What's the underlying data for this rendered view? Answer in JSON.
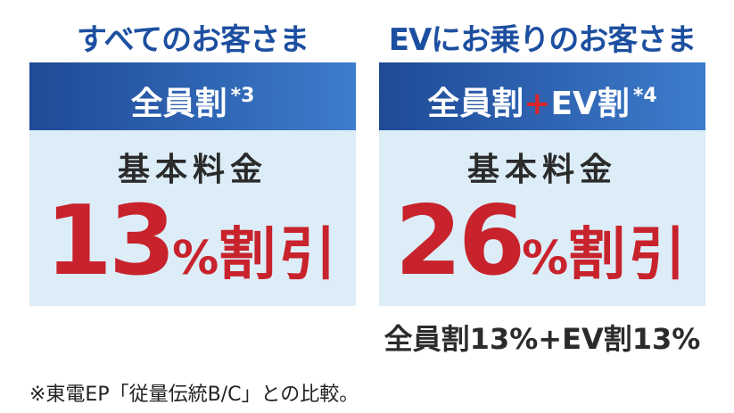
{
  "panels": [
    {
      "heading": "すべてのお客さま",
      "banner": [
        "全員割"
      ],
      "note": "*3",
      "label": "基本料金",
      "number": "13",
      "percent": "%",
      "suffix": "割引"
    },
    {
      "heading": "EVにお乗りのお客さま",
      "banner": [
        "全員割",
        "+",
        "EV割"
      ],
      "note": "*4",
      "label": "基本料金",
      "number": "26",
      "percent": "%",
      "suffix": "割引",
      "breakdown": "全員割13%+EV割13%"
    }
  ],
  "footnote": "※東電EP「従量伝統B/C」との比較。"
}
